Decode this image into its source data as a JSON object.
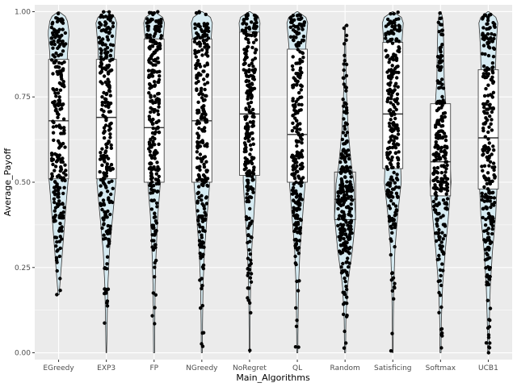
{
  "chart_data": {
    "type": "violin",
    "title": "",
    "xlabel": "Main_Algorithms",
    "ylabel": "Average_Payoff",
    "ylim": [
      -0.02,
      1.02
    ],
    "yticks": [
      0.0,
      0.25,
      0.5,
      0.75,
      1.0
    ],
    "ytick_labels": [
      "0.00",
      "0.25",
      "0.50",
      "0.75",
      "1.00"
    ],
    "grid": true,
    "legend": "none",
    "categories": [
      "EGreedy",
      "EXP3",
      "FP",
      "NGreedy",
      "NoRegret",
      "QL",
      "Random",
      "Satisficing",
      "Softmax",
      "UCB1"
    ],
    "box_stats": [
      {
        "category": "EGreedy",
        "q1": 0.51,
        "median": 0.68,
        "q3": 0.86
      },
      {
        "category": "EXP3",
        "q1": 0.51,
        "median": 0.69,
        "q3": 0.86
      },
      {
        "category": "FP",
        "q1": 0.5,
        "median": 0.66,
        "q3": 0.92
      },
      {
        "category": "NGreedy",
        "q1": 0.5,
        "median": 0.68,
        "q3": 0.92
      },
      {
        "category": "NoRegret",
        "q1": 0.52,
        "median": 0.7,
        "q3": 0.94
      },
      {
        "category": "QL",
        "q1": 0.5,
        "median": 0.64,
        "q3": 0.89
      },
      {
        "category": "Random",
        "q1": 0.39,
        "median": 0.45,
        "q3": 0.53
      },
      {
        "category": "Satisficing",
        "q1": 0.54,
        "median": 0.7,
        "q3": 0.91
      },
      {
        "category": "Softmax",
        "q1": 0.46,
        "median": 0.56,
        "q3": 0.73
      },
      {
        "category": "UCB1",
        "q1": 0.48,
        "median": 0.63,
        "q3": 0.83
      }
    ],
    "violin_shape": [
      {
        "category": "EGreedy",
        "min": 0.17,
        "max": 1.0,
        "density": [
          [
            0.17,
            0.05
          ],
          [
            0.25,
            0.25
          ],
          [
            0.35,
            0.5
          ],
          [
            0.45,
            0.75
          ],
          [
            0.52,
            0.95
          ],
          [
            0.6,
            0.8
          ],
          [
            0.7,
            0.7
          ],
          [
            0.8,
            0.75
          ],
          [
            0.88,
            0.85
          ],
          [
            0.94,
            1.0
          ],
          [
            0.98,
            0.8
          ],
          [
            1.0,
            0.25
          ]
        ]
      },
      {
        "category": "EXP3",
        "min": 0.0,
        "max": 1.0,
        "density": [
          [
            0.0,
            0.03
          ],
          [
            0.1,
            0.08
          ],
          [
            0.2,
            0.15
          ],
          [
            0.3,
            0.3
          ],
          [
            0.4,
            0.6
          ],
          [
            0.5,
            0.9
          ],
          [
            0.6,
            0.7
          ],
          [
            0.7,
            0.55
          ],
          [
            0.8,
            0.7
          ],
          [
            0.9,
            0.8
          ],
          [
            0.97,
            1.0
          ],
          [
            1.0,
            0.55
          ]
        ]
      },
      {
        "category": "FP",
        "min": 0.0,
        "max": 1.0,
        "density": [
          [
            0.0,
            0.05
          ],
          [
            0.1,
            0.07
          ],
          [
            0.2,
            0.1
          ],
          [
            0.3,
            0.2
          ],
          [
            0.4,
            0.35
          ],
          [
            0.5,
            0.6
          ],
          [
            0.6,
            0.65
          ],
          [
            0.7,
            0.6
          ],
          [
            0.8,
            0.65
          ],
          [
            0.9,
            0.8
          ],
          [
            0.97,
            1.0
          ],
          [
            1.0,
            0.6
          ]
        ]
      },
      {
        "category": "NGreedy",
        "min": 0.0,
        "max": 1.0,
        "density": [
          [
            0.0,
            0.05
          ],
          [
            0.1,
            0.07
          ],
          [
            0.2,
            0.12
          ],
          [
            0.3,
            0.25
          ],
          [
            0.4,
            0.5
          ],
          [
            0.5,
            0.75
          ],
          [
            0.6,
            0.65
          ],
          [
            0.7,
            0.6
          ],
          [
            0.8,
            0.7
          ],
          [
            0.9,
            0.85
          ],
          [
            0.97,
            1.0
          ],
          [
            1.0,
            0.6
          ]
        ]
      },
      {
        "category": "NoRegret",
        "min": 0.0,
        "max": 1.0,
        "density": [
          [
            0.0,
            0.03
          ],
          [
            0.1,
            0.05
          ],
          [
            0.2,
            0.1
          ],
          [
            0.3,
            0.2
          ],
          [
            0.4,
            0.4
          ],
          [
            0.5,
            0.6
          ],
          [
            0.6,
            0.6
          ],
          [
            0.7,
            0.55
          ],
          [
            0.8,
            0.65
          ],
          [
            0.9,
            0.85
          ],
          [
            0.97,
            1.0
          ],
          [
            1.0,
            0.7
          ]
        ]
      },
      {
        "category": "QL",
        "min": 0.0,
        "max": 1.0,
        "density": [
          [
            0.0,
            0.05
          ],
          [
            0.1,
            0.07
          ],
          [
            0.2,
            0.12
          ],
          [
            0.3,
            0.25
          ],
          [
            0.4,
            0.5
          ],
          [
            0.5,
            0.75
          ],
          [
            0.6,
            0.65
          ],
          [
            0.7,
            0.55
          ],
          [
            0.8,
            0.6
          ],
          [
            0.9,
            0.8
          ],
          [
            0.97,
            1.0
          ],
          [
            1.0,
            0.6
          ]
        ]
      },
      {
        "category": "Random",
        "min": 0.0,
        "max": 0.96,
        "density": [
          [
            0.0,
            0.05
          ],
          [
            0.1,
            0.08
          ],
          [
            0.2,
            0.25
          ],
          [
            0.3,
            0.7
          ],
          [
            0.4,
            1.0
          ],
          [
            0.45,
            0.9
          ],
          [
            0.5,
            0.85
          ],
          [
            0.55,
            0.6
          ],
          [
            0.65,
            0.3
          ],
          [
            0.75,
            0.15
          ],
          [
            0.85,
            0.08
          ],
          [
            0.96,
            0.03
          ]
        ]
      },
      {
        "category": "Satisficing",
        "min": 0.0,
        "max": 1.0,
        "density": [
          [
            0.0,
            0.03
          ],
          [
            0.1,
            0.05
          ],
          [
            0.2,
            0.1
          ],
          [
            0.3,
            0.2
          ],
          [
            0.4,
            0.45
          ],
          [
            0.5,
            0.8
          ],
          [
            0.6,
            0.7
          ],
          [
            0.7,
            0.6
          ],
          [
            0.8,
            0.7
          ],
          [
            0.9,
            0.85
          ],
          [
            0.97,
            1.0
          ],
          [
            1.0,
            0.6
          ]
        ]
      },
      {
        "category": "Softmax",
        "min": 0.0,
        "max": 1.0,
        "density": [
          [
            0.0,
            0.05
          ],
          [
            0.1,
            0.08
          ],
          [
            0.2,
            0.2
          ],
          [
            0.3,
            0.45
          ],
          [
            0.4,
            0.75
          ],
          [
            0.5,
            1.0
          ],
          [
            0.6,
            0.85
          ],
          [
            0.7,
            0.55
          ],
          [
            0.8,
            0.35
          ],
          [
            0.9,
            0.3
          ],
          [
            0.97,
            0.25
          ],
          [
            1.0,
            0.1
          ]
        ]
      },
      {
        "category": "UCB1",
        "min": 0.0,
        "max": 1.0,
        "density": [
          [
            0.0,
            0.05
          ],
          [
            0.1,
            0.1
          ],
          [
            0.2,
            0.2
          ],
          [
            0.3,
            0.4
          ],
          [
            0.4,
            0.7
          ],
          [
            0.5,
            0.85
          ],
          [
            0.6,
            0.7
          ],
          [
            0.7,
            0.6
          ],
          [
            0.8,
            0.65
          ],
          [
            0.9,
            0.75
          ],
          [
            0.97,
            0.9
          ],
          [
            1.0,
            0.5
          ]
        ]
      }
    ],
    "violin_fill": "#d6ebf2",
    "box_fill": "#ffffff",
    "point_color": "#000000",
    "panel_background": "#ebebeb",
    "grid_color": "#ffffff"
  }
}
